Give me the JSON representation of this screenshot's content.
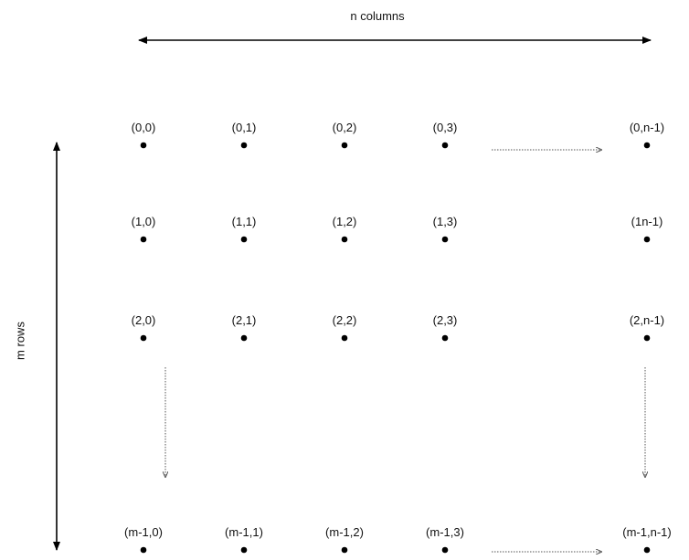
{
  "axes": {
    "columns_label": "n columns",
    "rows_label": "m rows"
  },
  "grid": {
    "rows": [
      [
        "(0,0)",
        "(0,1)",
        "(0,2)",
        "(0,3)",
        "(0,n-1)"
      ],
      [
        "(1,0)",
        "(1,1)",
        "(1,2)",
        "(1,3)",
        "(1n-1)"
      ],
      [
        "(2,0)",
        "(2,1)",
        "(2,2)",
        "(2,3)",
        "(2,n-1)"
      ],
      [
        "(m-1,0)",
        "(m-1,1)",
        "(m-1,2)",
        "(m-1,3)",
        "(m-1,n-1)"
      ]
    ]
  },
  "colors": {
    "ink": "#000000",
    "dotted": "#555555"
  }
}
